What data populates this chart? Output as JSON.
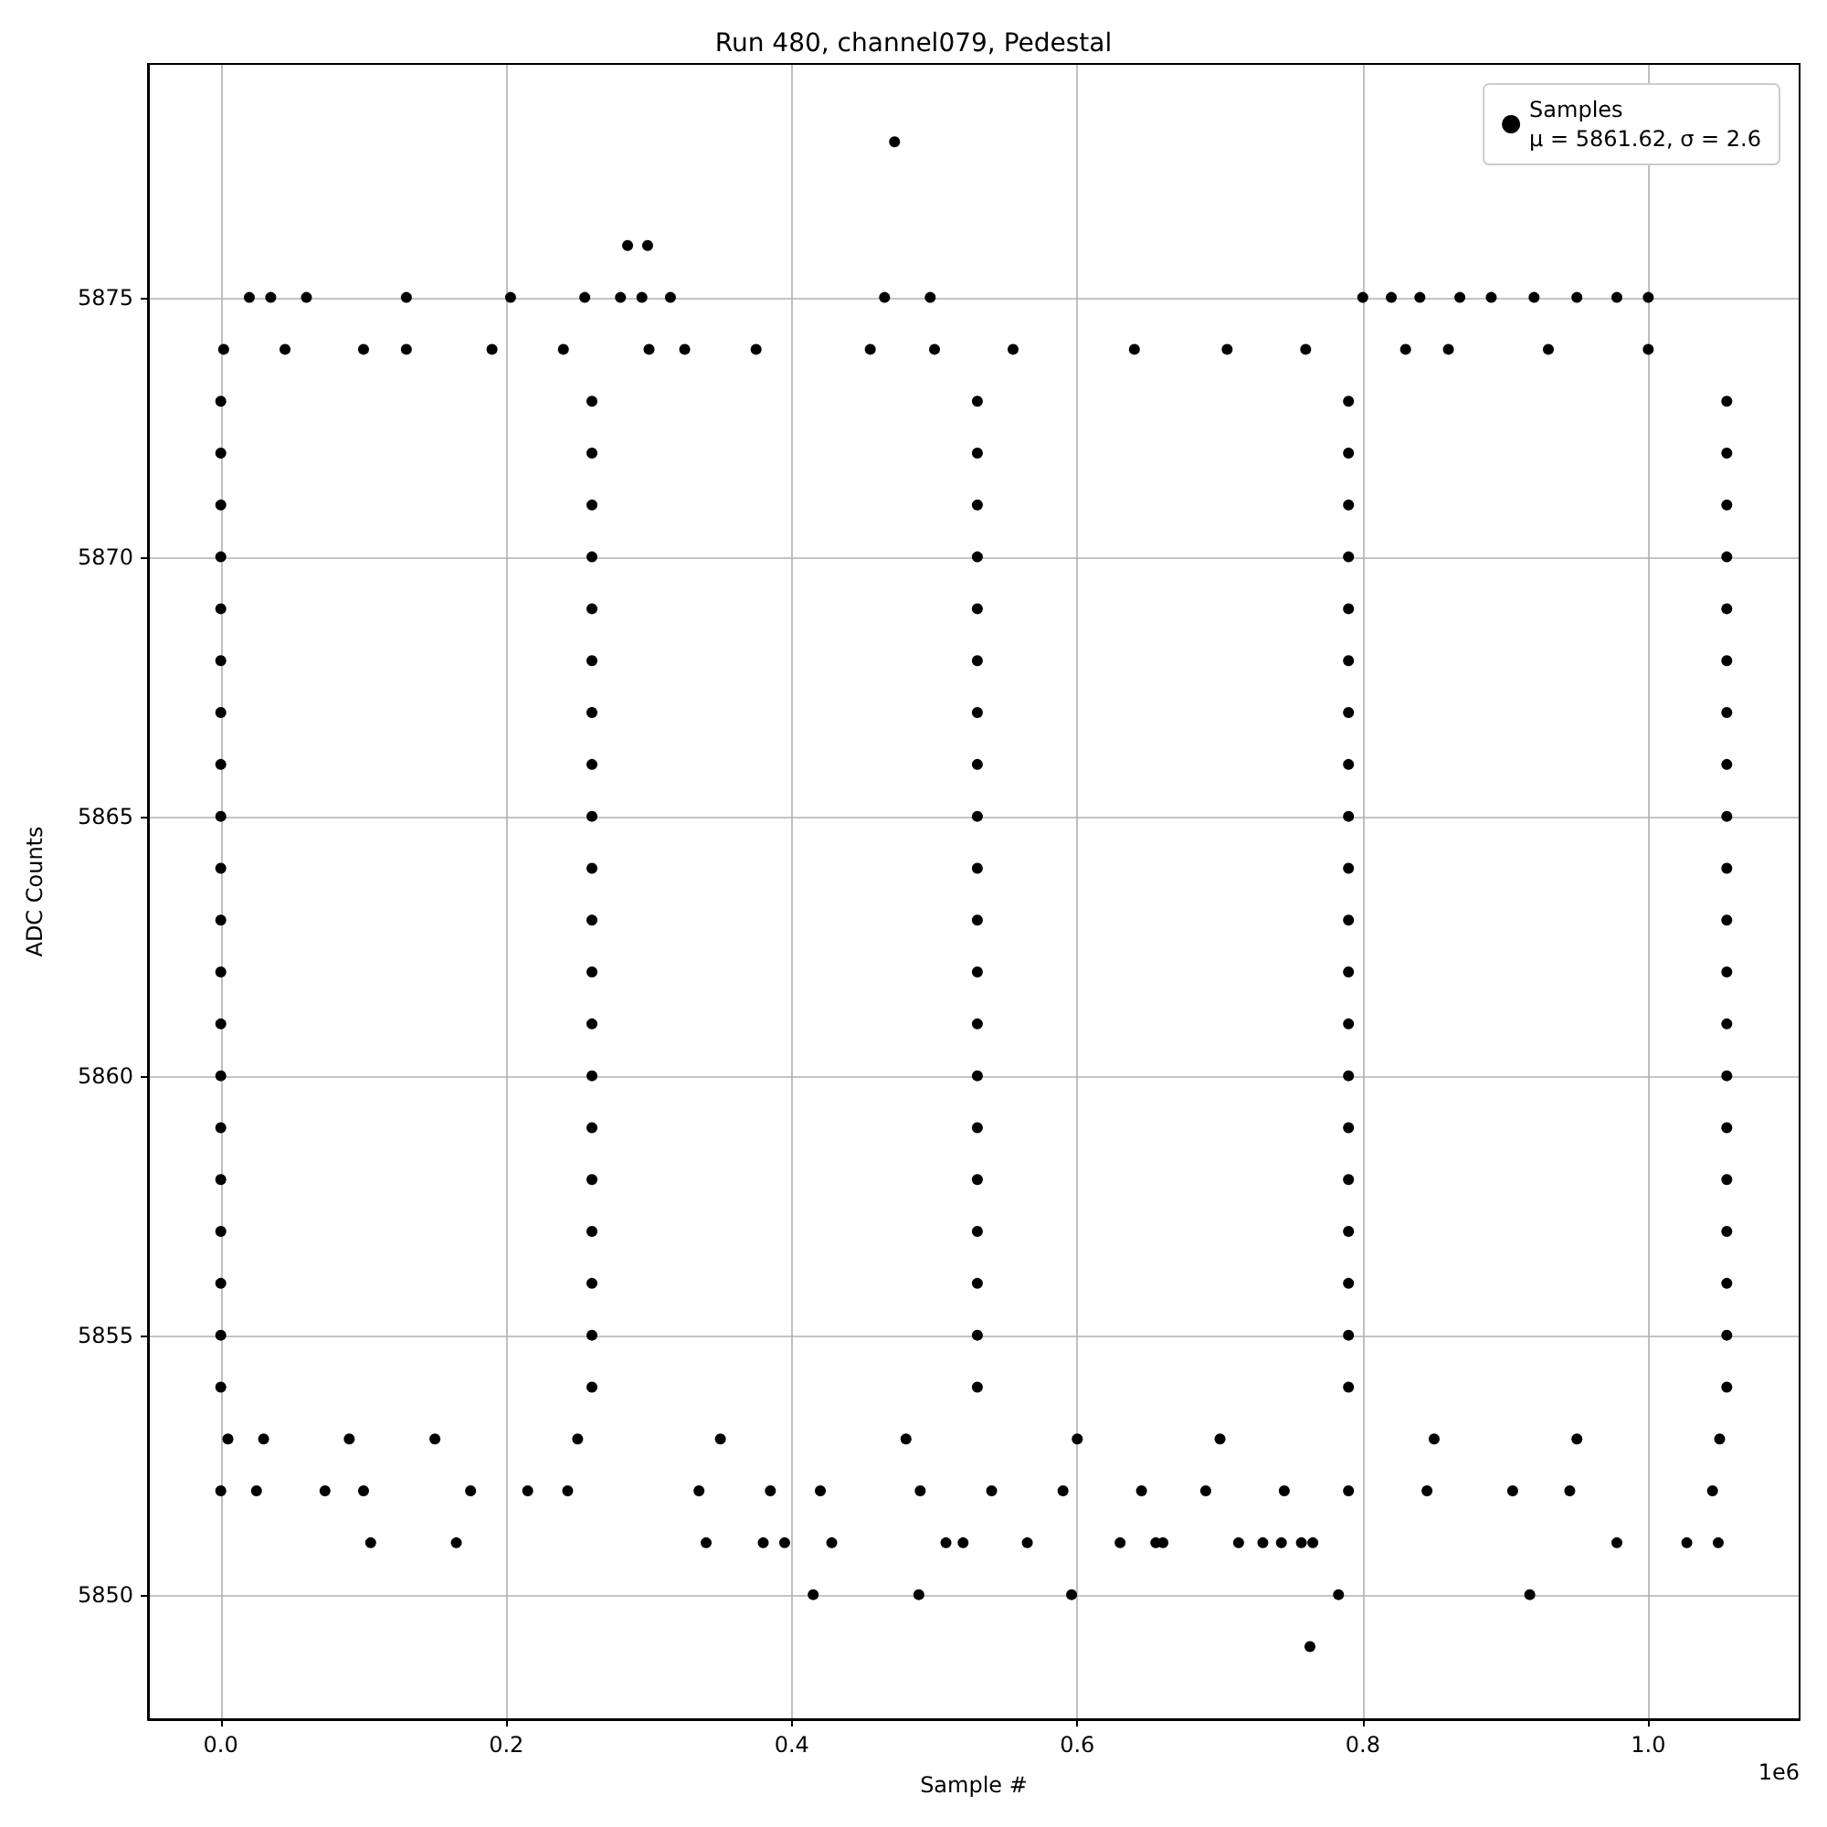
{
  "chart_data": {
    "type": "scatter",
    "title": "Run 480, channel079, Pedestal",
    "xlabel": "Sample #",
    "ylabel": "ADC Counts",
    "annotations": [
      "1e6"
    ],
    "xlim": [
      -0.051,
      1.106
    ],
    "xticks": [
      {
        "value": 0,
        "label": "0.0"
      },
      0.2,
      0.4,
      0.6,
      0.8,
      {
        "value": 1,
        "label": "1.0"
      }
    ],
    "ylim": [
      5847.6,
      5879.5
    ],
    "yticks": [
      5850,
      5855,
      5860,
      5865,
      5870,
      5875
    ],
    "grid": true,
    "legend": "top right",
    "marker": "circle",
    "series": [
      {
        "name": "Samples\nμ = 5861.62, σ = 2.6",
        "color": "#000000",
        "x": [
          0,
          0.26,
          0.53,
          0.79,
          1.055,
          0,
          0.26,
          0.53,
          0.79,
          1.055,
          0,
          0.26,
          0.53,
          0.79,
          1.055,
          0,
          0.26,
          0.53,
          0.79,
          1.055,
          0,
          0.26,
          0.53,
          0.79,
          1.055,
          0,
          0.26,
          0.53,
          0.79,
          1.055,
          0,
          0.26,
          0.53,
          0.79,
          1.055,
          0,
          0.26,
          0.53,
          0.79,
          1.055,
          0,
          0.26,
          0.53,
          0.79,
          1.055,
          0,
          0.26,
          0.53,
          0.79,
          1.055,
          0,
          0.26,
          0.53,
          0.79,
          1.055,
          0,
          0.26,
          0.53,
          0.79,
          1.055,
          0,
          0.26,
          0.53,
          0.79,
          1.055,
          0,
          0.26,
          0.53,
          0.79,
          1.055,
          0,
          0.26,
          0.53,
          0.79,
          1.055,
          0,
          0.26,
          0.53,
          0.79,
          1.055,
          0,
          0.26,
          0.53,
          0.79,
          1.055,
          0,
          0.26,
          0.53,
          0.79,
          1.055,
          0,
          0.26,
          0.53,
          0.79,
          1.055,
          0,
          0.26,
          0.53,
          0.79,
          1.055,
          0.472,
          0.285,
          0.299,
          0.02,
          0.035,
          0.06,
          0.13,
          0.203,
          0.255,
          0.28,
          0.295,
          0.315,
          0.465,
          0.497,
          0.8,
          0.82,
          0.84,
          0.868,
          0.89,
          0.92,
          0.95,
          0.978,
          1.0,
          0.002,
          0.045,
          0.1,
          0.13,
          0.19,
          0.24,
          0.3,
          0.325,
          0.375,
          0.455,
          0.5,
          0.555,
          0.64,
          0.705,
          0.76,
          0.83,
          0.86,
          0.93,
          1.0,
          0.005,
          0.03,
          0.09,
          0.15,
          0.25,
          0.35,
          0.48,
          0.6,
          0.7,
          0.85,
          0.95,
          1.05,
          0,
          0.025,
          0.073,
          0.1,
          0.175,
          0.215,
          0.243,
          0.335,
          0.385,
          0.42,
          0.49,
          0.54,
          0.59,
          0.645,
          0.69,
          0.745,
          0.79,
          0.845,
          0.905,
          0.945,
          1.045,
          0.105,
          0.165,
          0.34,
          0.38,
          0.395,
          0.428,
          0.508,
          0.52,
          0.565,
          0.63,
          0.655,
          0.66,
          0.713,
          0.73,
          0.743,
          0.757,
          0.765,
          0.978,
          1.027,
          1.049,
          0.415,
          0.489,
          0.596,
          0.783,
          0.917,
          0.763
        ],
        "values": [
          5854,
          5854,
          5854,
          5854,
          5854,
          5855,
          5855,
          5855,
          5855,
          5855,
          5856,
          5856,
          5856,
          5856,
          5856,
          5857,
          5857,
          5857,
          5857,
          5857,
          5858,
          5858,
          5858,
          5858,
          5858,
          5859,
          5859,
          5859,
          5859,
          5859,
          5860,
          5860,
          5860,
          5860,
          5860,
          5861,
          5861,
          5861,
          5861,
          5861,
          5862,
          5862,
          5862,
          5862,
          5862,
          5863,
          5863,
          5863,
          5863,
          5863,
          5864,
          5864,
          5864,
          5864,
          5864,
          5865,
          5865,
          5865,
          5865,
          5865,
          5866,
          5866,
          5866,
          5866,
          5866,
          5867,
          5867,
          5867,
          5867,
          5867,
          5868,
          5868,
          5868,
          5868,
          5868,
          5869,
          5869,
          5869,
          5869,
          5869,
          5870,
          5870,
          5870,
          5870,
          5870,
          5871,
          5871,
          5871,
          5871,
          5871,
          5872,
          5872,
          5872,
          5872,
          5872,
          5873,
          5873,
          5873,
          5873,
          5873,
          5878,
          5876,
          5876,
          5875,
          5875,
          5875,
          5875,
          5875,
          5875,
          5875,
          5875,
          5875,
          5875,
          5875,
          5875,
          5875,
          5875,
          5875,
          5875,
          5875,
          5875,
          5875,
          5875,
          5874,
          5874,
          5874,
          5874,
          5874,
          5874,
          5874,
          5874,
          5874,
          5874,
          5874,
          5874,
          5874,
          5874,
          5874,
          5874,
          5874,
          5874,
          5874,
          5853,
          5853,
          5853,
          5853,
          5853,
          5853,
          5853,
          5853,
          5853,
          5853,
          5853,
          5853,
          5852,
          5852,
          5852,
          5852,
          5852,
          5852,
          5852,
          5852,
          5852,
          5852,
          5852,
          5852,
          5852,
          5852,
          5852,
          5852,
          5852,
          5852,
          5852,
          5852,
          5852,
          5851,
          5851,
          5851,
          5851,
          5851,
          5851,
          5851,
          5851,
          5851,
          5851,
          5851,
          5851,
          5851,
          5851,
          5851,
          5851,
          5851,
          5851,
          5851,
          5851,
          5850,
          5850,
          5850,
          5850,
          5850,
          5849
        ]
      }
    ]
  }
}
